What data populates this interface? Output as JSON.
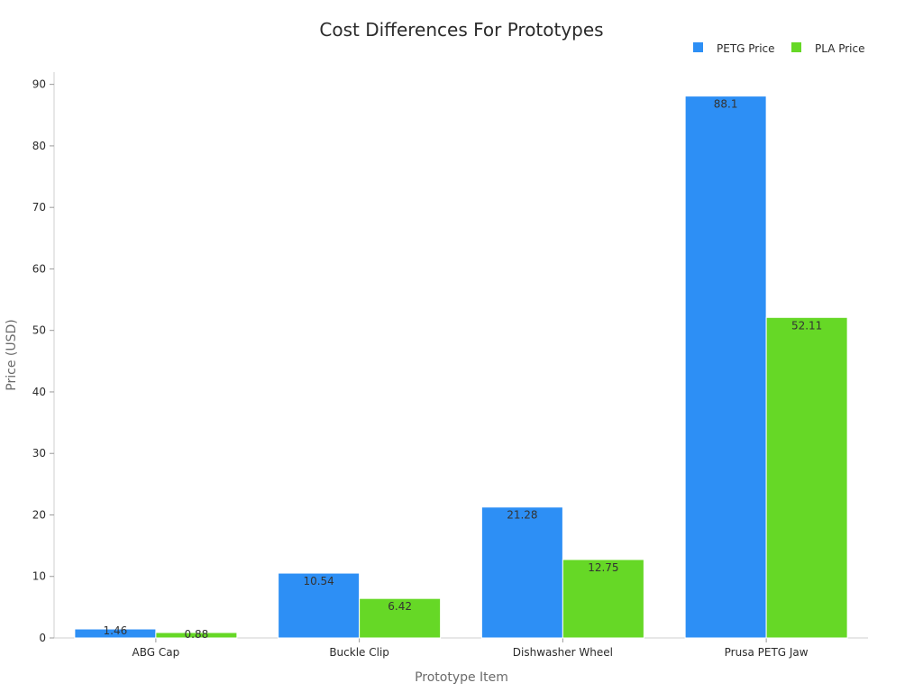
{
  "chart_data": {
    "type": "bar",
    "title": "Cost Differences For Prototypes",
    "xlabel": "Prototype Item",
    "ylabel": "Price (USD)",
    "categories": [
      "ABG Cap",
      "Buckle Clip",
      "Dishwasher Wheel",
      "Prusa PETG Jaw"
    ],
    "series": [
      {
        "name": "PETG Price",
        "color": "#2d8ff5",
        "values": [
          1.46,
          10.54,
          21.28,
          88.1
        ],
        "labels": [
          "1.46",
          "10.54",
          "21.28",
          "88.1"
        ]
      },
      {
        "name": "PLA Price",
        "color": "#66d826",
        "values": [
          0.88,
          6.42,
          12.75,
          52.11
        ],
        "labels": [
          "0.88",
          "6.42",
          "12.75",
          "52.11"
        ]
      }
    ],
    "ylim": [
      0,
      92
    ],
    "yticks": [
      0,
      10,
      20,
      30,
      40,
      50,
      60,
      70,
      80,
      90
    ],
    "grid": false,
    "legend_position": "top-right"
  }
}
